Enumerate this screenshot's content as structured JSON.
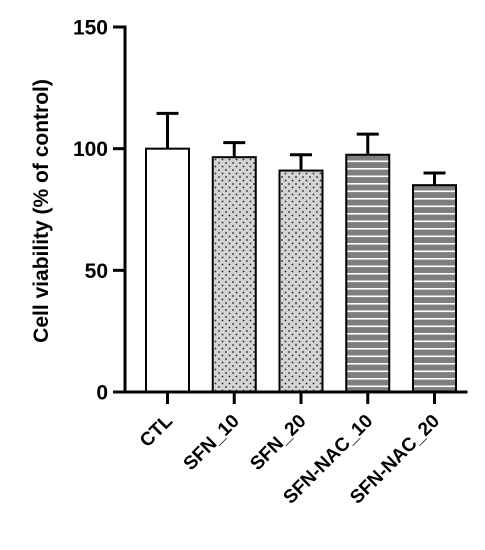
{
  "chart_data": {
    "type": "bar",
    "title": "",
    "xlabel": "",
    "ylabel": "Cell viability (% of control)",
    "ylim": [
      0,
      150
    ],
    "yticks": [
      0,
      50,
      100,
      150
    ],
    "grid": false,
    "legend": "none",
    "categories": [
      "CTL",
      "SFN_10",
      "SFN_20",
      "SFN-NAC_10",
      "SFN-NAC_20"
    ],
    "values": [
      100,
      96.5,
      91,
      97.5,
      85
    ],
    "error_upper": [
      14.5,
      6,
      6.5,
      8.5,
      5
    ],
    "bar_fills": [
      "white",
      "dots",
      "dots",
      "stripes",
      "stripes"
    ],
    "colors": {
      "axis": "#000000",
      "bar_outline": "#000000",
      "dots_background": "#d3d3d3",
      "stripes_background": "#7f7f7f",
      "stripes_line": "#ffffff"
    }
  }
}
